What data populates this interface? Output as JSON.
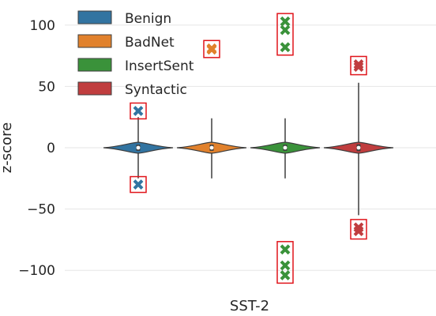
{
  "chart_data": {
    "type": "violin",
    "title": "",
    "xlabel": "",
    "ylabel": "z-score",
    "category": "SST-2",
    "ylim": [
      -120,
      120
    ],
    "yticks": [
      -100,
      -50,
      0,
      50,
      100
    ],
    "ytick_labels": [
      "−100",
      "−50",
      "0",
      "50",
      "100"
    ],
    "grid": true,
    "legend_position": "top-left",
    "series": [
      {
        "name": "Benign",
        "color": "#3274a1",
        "whisker": [
          -25,
          25
        ],
        "iqr": [
          -1.2,
          1.2
        ],
        "median": 0,
        "outliers": [
          30,
          -30
        ]
      },
      {
        "name": "BadNet",
        "color": "#e1812c",
        "whisker": [
          -25,
          24
        ],
        "iqr": [
          -1.2,
          1.2
        ],
        "median": 0,
        "outliers": [
          80,
          81
        ]
      },
      {
        "name": "InsertSent",
        "color": "#3a923a",
        "whisker": [
          -25,
          24
        ],
        "iqr": [
          -1.2,
          1.2
        ],
        "median": 0,
        "outliers": [
          103,
          96,
          82,
          -83,
          -96,
          -104
        ]
      },
      {
        "name": "Syntactic",
        "color": "#c03d3e",
        "whisker": [
          -55,
          53
        ],
        "iqr": [
          -1.5,
          1.5
        ],
        "median": 0,
        "outliers": [
          68,
          66,
          -65,
          -68
        ]
      }
    ]
  }
}
